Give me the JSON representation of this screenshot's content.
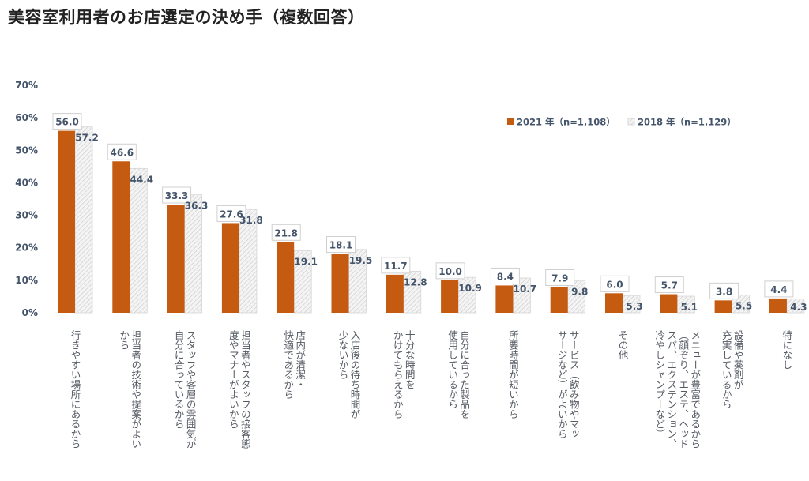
{
  "title": "美容室利用者のお店選定の決め手（複数回答）",
  "colors": {
    "series_2021": "#c55a11",
    "series_2018_fill": "#f2f2f2",
    "series_2018_hatch": "#c8c8c8",
    "text": "#44546a"
  },
  "chart_data": {
    "type": "bar",
    "title": "美容室利用者のお店選定の決め手（複数回答）",
    "xlabel": "",
    "ylabel": "",
    "ylim": [
      0,
      70
    ],
    "yticks": [
      "0%",
      "10%",
      "20%",
      "30%",
      "40%",
      "50%",
      "60%",
      "70%"
    ],
    "ytick_values": [
      0,
      10,
      20,
      30,
      40,
      50,
      60,
      70
    ],
    "grid": false,
    "legend_position": "top-right",
    "categories": [
      [
        "行きやすい場所にあるから"
      ],
      [
        "担当者の技術や提案がよい",
        "から"
      ],
      [
        "スタッフや客層の雰囲気が",
        "自分に合っているから"
      ],
      [
        "担当者やスタッフの接客態",
        "度やマナーがよいから"
      ],
      [
        "店内が清潔・",
        "快適であるから"
      ],
      [
        "入店後の待ち時間が",
        "少ないから"
      ],
      [
        "十分な時間を",
        "かけてもらえるから"
      ],
      [
        "自分に合った製品を",
        "使用しているから"
      ],
      [
        "所要時間が短いから"
      ],
      [
        "サービス（飲み物やマッ",
        "サージなど）がよいから"
      ],
      [
        "その他"
      ],
      [
        "メニューが豊富であるから",
        "（顔ぞり、エステ、ヘッド",
        "スパ、エクステンション、",
        "冷やしシャンプーなど）"
      ],
      [
        "設備や薬剤が",
        "充実しているから"
      ],
      [
        "特になし"
      ]
    ],
    "series": [
      {
        "name": "2021年（n=1,108）",
        "values": [
          56.0,
          46.6,
          33.3,
          27.6,
          21.8,
          18.1,
          11.7,
          10.0,
          8.4,
          7.9,
          6.0,
          5.7,
          3.8,
          4.4
        ],
        "labels": [
          "56.0",
          "46.6",
          "33.3",
          "27.6",
          "21.8",
          "18.1",
          "11.7",
          "10.0",
          "8.4",
          "7.9",
          "6.0",
          "5.7",
          "3.8",
          "4.4"
        ]
      },
      {
        "name": "2018年（n=1,129）",
        "values": [
          57.2,
          44.4,
          36.3,
          31.8,
          19.1,
          19.5,
          12.8,
          10.9,
          10.7,
          9.8,
          5.3,
          5.1,
          5.5,
          4.3
        ],
        "labels": [
          "57.2",
          "44.4",
          "36.3",
          "31.8",
          "19.1",
          "19.5",
          "12.8",
          "10.9",
          "10.7",
          "9.8",
          "5.3",
          "5.1",
          "5.5",
          "4.3"
        ]
      }
    ]
  },
  "legend": {
    "items": [
      {
        "label": "2021 年（n=1,108）",
        "icon": "solid-square"
      },
      {
        "label": "2018 年（n=1,129）",
        "icon": "hatched-square"
      }
    ]
  }
}
